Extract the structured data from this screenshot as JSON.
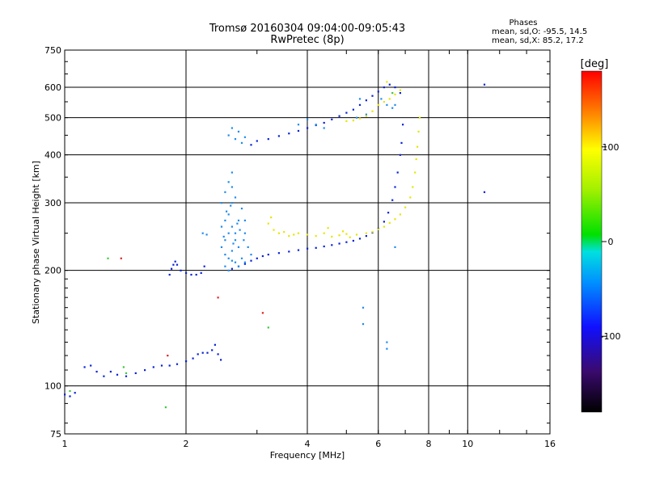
{
  "chart_data": {
    "type": "scatter",
    "title": "Tromsø 20160304 09:04:00-09:05:43",
    "subtitle": "RwPretec (8p)",
    "xlabel": "Frequency [MHz]",
    "ylabel": "Stationary phase Virtual Height [km]",
    "x_scale": "log",
    "y_scale": "log",
    "xlim": [
      1,
      16
    ],
    "ylim": [
      75,
      750
    ],
    "x_ticks": [
      1,
      2,
      4,
      6,
      8,
      10,
      16
    ],
    "y_ticks": [
      75,
      100,
      200,
      300,
      400,
      500,
      600,
      750
    ],
    "grid": true,
    "phase_legend": {
      "title": "Phases",
      "line_o": "mean, sd,O: -95.5, 14.5",
      "line_x": "mean, sd,X:  85.2, 17.2"
    },
    "colorbar": {
      "label": "[deg]",
      "range": [
        -180,
        180
      ],
      "ticks": [
        100,
        0,
        -100
      ]
    },
    "colors": {
      "o_mode": "#0a22d8",
      "o_mode_alt": "#1560ff",
      "o_mode_spread": "#1f8cf0",
      "o_mode_dark": "#3a10b0",
      "x_mode": "#e6e600",
      "green": "#3cc83c",
      "red": "#e02020"
    },
    "series": [
      {
        "mode": "O",
        "color_key": "o_mode",
        "phase": -95,
        "points": [
          [
            1.0,
            95
          ],
          [
            1.03,
            94
          ],
          [
            1.06,
            96
          ],
          [
            1.12,
            112
          ],
          [
            1.16,
            113
          ],
          [
            1.2,
            109
          ],
          [
            1.25,
            106
          ],
          [
            1.3,
            109
          ],
          [
            1.35,
            107
          ],
          [
            1.42,
            106
          ],
          [
            1.5,
            108
          ],
          [
            1.58,
            110
          ],
          [
            1.66,
            112
          ],
          [
            1.74,
            113
          ],
          [
            1.82,
            113
          ],
          [
            1.9,
            114
          ],
          [
            2.0,
            116
          ],
          [
            2.08,
            118
          ],
          [
            2.14,
            121
          ],
          [
            2.2,
            122
          ],
          [
            2.26,
            122
          ],
          [
            2.32,
            124
          ],
          [
            2.36,
            128
          ],
          [
            2.4,
            121
          ],
          [
            2.44,
            117
          ],
          [
            1.82,
            195
          ],
          [
            1.84,
            202
          ],
          [
            1.86,
            207
          ],
          [
            1.88,
            211
          ],
          [
            1.9,
            207
          ],
          [
            1.94,
            200
          ],
          [
            2.0,
            197
          ],
          [
            2.06,
            195
          ],
          [
            2.12,
            195
          ],
          [
            2.18,
            197
          ],
          [
            2.22,
            205
          ],
          [
            2.6,
            202
          ],
          [
            2.7,
            205
          ],
          [
            2.8,
            208
          ],
          [
            2.9,
            212
          ],
          [
            3.0,
            215
          ],
          [
            3.1,
            218
          ],
          [
            3.2,
            220
          ],
          [
            3.4,
            222
          ],
          [
            3.6,
            224
          ],
          [
            3.8,
            226
          ],
          [
            4.0,
            228
          ],
          [
            4.2,
            229
          ],
          [
            4.4,
            231
          ],
          [
            4.6,
            233
          ],
          [
            4.8,
            235
          ],
          [
            5.0,
            237
          ],
          [
            5.2,
            239
          ],
          [
            5.4,
            242
          ],
          [
            5.6,
            246
          ],
          [
            5.8,
            251
          ],
          [
            6.0,
            257
          ],
          [
            6.2,
            268
          ],
          [
            6.35,
            283
          ],
          [
            6.5,
            305
          ],
          [
            6.6,
            330
          ],
          [
            6.7,
            360
          ],
          [
            6.8,
            400
          ],
          [
            6.85,
            430
          ],
          [
            6.9,
            480
          ],
          [
            2.9,
            425
          ],
          [
            3.0,
            435
          ],
          [
            3.2,
            440
          ],
          [
            3.4,
            448
          ],
          [
            3.6,
            455
          ],
          [
            3.8,
            462
          ],
          [
            4.0,
            470
          ],
          [
            4.2,
            478
          ],
          [
            4.4,
            485
          ],
          [
            4.6,
            495
          ],
          [
            4.8,
            505
          ],
          [
            5.0,
            515
          ],
          [
            5.2,
            525
          ],
          [
            5.4,
            540
          ],
          [
            5.6,
            555
          ],
          [
            5.8,
            570
          ],
          [
            6.0,
            585
          ],
          [
            6.2,
            600
          ],
          [
            6.4,
            610
          ],
          [
            6.6,
            600
          ],
          [
            6.8,
            580
          ],
          [
            11.0,
            610
          ],
          [
            11.0,
            320
          ]
        ]
      },
      {
        "mode": "O (spread)",
        "color_key": "o_mode_spread",
        "phase": -80,
        "points": [
          [
            2.45,
            300
          ],
          [
            2.5,
            320
          ],
          [
            2.55,
            280
          ],
          [
            2.6,
            260
          ],
          [
            2.65,
            240
          ],
          [
            2.7,
            230
          ],
          [
            2.55,
            250
          ],
          [
            2.5,
            270
          ],
          [
            2.6,
            300
          ],
          [
            2.65,
            310
          ],
          [
            2.75,
            290
          ],
          [
            2.7,
            270
          ],
          [
            2.5,
            220
          ],
          [
            2.55,
            215
          ],
          [
            2.6,
            225
          ],
          [
            2.65,
            210
          ],
          [
            2.7,
            205
          ],
          [
            2.8,
            250
          ],
          [
            2.8,
            270
          ],
          [
            2.6,
            330
          ],
          [
            2.55,
            340
          ],
          [
            2.6,
            360
          ],
          [
            2.65,
            250
          ],
          [
            2.5,
            240
          ],
          [
            2.45,
            230
          ],
          [
            2.75,
            215
          ],
          [
            2.85,
            230
          ],
          [
            2.8,
            210
          ],
          [
            2.9,
            220
          ],
          [
            2.55,
            200
          ],
          [
            2.5,
            205
          ],
          [
            2.6,
            212
          ],
          [
            2.48,
            245
          ],
          [
            2.52,
            285
          ],
          [
            2.58,
            295
          ],
          [
            2.68,
            265
          ],
          [
            2.72,
            255
          ],
          [
            2.62,
            235
          ],
          [
            2.45,
            260
          ],
          [
            2.78,
            240
          ],
          [
            2.55,
            450
          ],
          [
            2.6,
            470
          ],
          [
            2.65,
            440
          ],
          [
            2.7,
            460
          ],
          [
            2.75,
            430
          ],
          [
            2.8,
            445
          ],
          [
            4.2,
            480
          ],
          [
            4.4,
            470
          ],
          [
            4.0,
            495
          ],
          [
            3.8,
            480
          ],
          [
            5.3,
            500
          ],
          [
            5.6,
            510
          ],
          [
            6.1,
            560
          ],
          [
            6.3,
            540
          ],
          [
            6.5,
            530
          ],
          [
            6.6,
            540
          ],
          [
            5.4,
            560
          ],
          [
            5.5,
            160
          ],
          [
            5.5,
            145
          ],
          [
            6.3,
            130
          ],
          [
            6.3,
            125
          ],
          [
            6.6,
            230
          ],
          [
            2.2,
            250
          ],
          [
            2.25,
            248
          ]
        ]
      },
      {
        "mode": "X",
        "color_key": "x_mode",
        "phase": 85,
        "points": [
          [
            3.3,
            255
          ],
          [
            3.4,
            250
          ],
          [
            3.5,
            252
          ],
          [
            3.6,
            246
          ],
          [
            3.7,
            248
          ],
          [
            3.8,
            250
          ],
          [
            4.0,
            248
          ],
          [
            4.2,
            246
          ],
          [
            4.4,
            250
          ],
          [
            4.6,
            245
          ],
          [
            4.8,
            247
          ],
          [
            5.0,
            249
          ],
          [
            5.3,
            248
          ],
          [
            5.6,
            250
          ],
          [
            5.8,
            252
          ],
          [
            6.0,
            256
          ],
          [
            6.2,
            260
          ],
          [
            6.4,
            266
          ],
          [
            6.6,
            272
          ],
          [
            6.8,
            280
          ],
          [
            7.0,
            292
          ],
          [
            7.2,
            310
          ],
          [
            7.3,
            330
          ],
          [
            7.4,
            360
          ],
          [
            7.45,
            390
          ],
          [
            7.5,
            420
          ],
          [
            7.55,
            460
          ],
          [
            7.6,
            500
          ],
          [
            5.0,
            490
          ],
          [
            5.2,
            492
          ],
          [
            5.4,
            498
          ],
          [
            5.6,
            505
          ],
          [
            5.8,
            520
          ],
          [
            6.0,
            540
          ],
          [
            6.2,
            550
          ],
          [
            6.4,
            560
          ],
          [
            6.6,
            575
          ],
          [
            6.8,
            590
          ],
          [
            6.3,
            620
          ],
          [
            3.2,
            265
          ],
          [
            3.25,
            275
          ],
          [
            4.5,
            258
          ],
          [
            4.9,
            253
          ],
          [
            5.1,
            244
          ]
        ]
      },
      {
        "mode": "other",
        "color_key": "green",
        "phase": 10,
        "points": [
          [
            1.28,
            215
          ],
          [
            1.4,
            112
          ],
          [
            1.42,
            108
          ],
          [
            1.78,
            88
          ],
          [
            3.2,
            142
          ],
          [
            6.5,
            580
          ],
          [
            1.03,
            97
          ]
        ]
      },
      {
        "mode": "other",
        "color_key": "red",
        "phase": 170,
        "points": [
          [
            1.38,
            215
          ],
          [
            1.8,
            120
          ],
          [
            2.4,
            170
          ],
          [
            3.1,
            155
          ]
        ]
      }
    ]
  }
}
